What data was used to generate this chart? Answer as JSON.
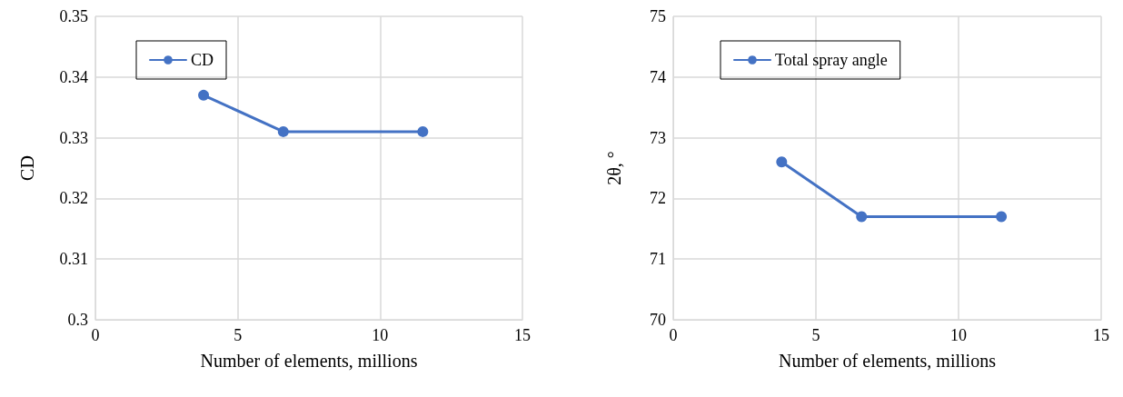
{
  "chart_data": [
    {
      "type": "line",
      "xlabel": "Number of elements, millions",
      "ylabel": "CD",
      "x": [
        3.8,
        6.6,
        11.5
      ],
      "series": [
        {
          "name": "CD",
          "color": "#4472c4",
          "values": [
            0.337,
            0.331,
            0.331
          ]
        }
      ],
      "xlim": [
        0,
        15
      ],
      "xticks": [
        0,
        5,
        10,
        15
      ],
      "ylim": [
        0.3,
        0.35
      ],
      "yticks": [
        0.3,
        0.31,
        0.32,
        0.33,
        0.34,
        0.35
      ],
      "grid": true,
      "legend": "top",
      "marker": "circle",
      "line_style": "solid"
    },
    {
      "type": "line",
      "xlabel": "Number of elements, millions",
      "ylabel": "2θ, °",
      "x": [
        3.8,
        6.6,
        11.5
      ],
      "series": [
        {
          "name": "Total spray angle",
          "color": "#4472c4",
          "values": [
            72.6,
            71.7,
            71.7
          ]
        }
      ],
      "xlim": [
        0,
        15
      ],
      "xticks": [
        0,
        5,
        10,
        15
      ],
      "ylim": [
        70,
        75
      ],
      "yticks": [
        70,
        71,
        72,
        73,
        74,
        75
      ],
      "grid": true,
      "legend": "top",
      "marker": "circle",
      "line_style": "solid"
    }
  ]
}
